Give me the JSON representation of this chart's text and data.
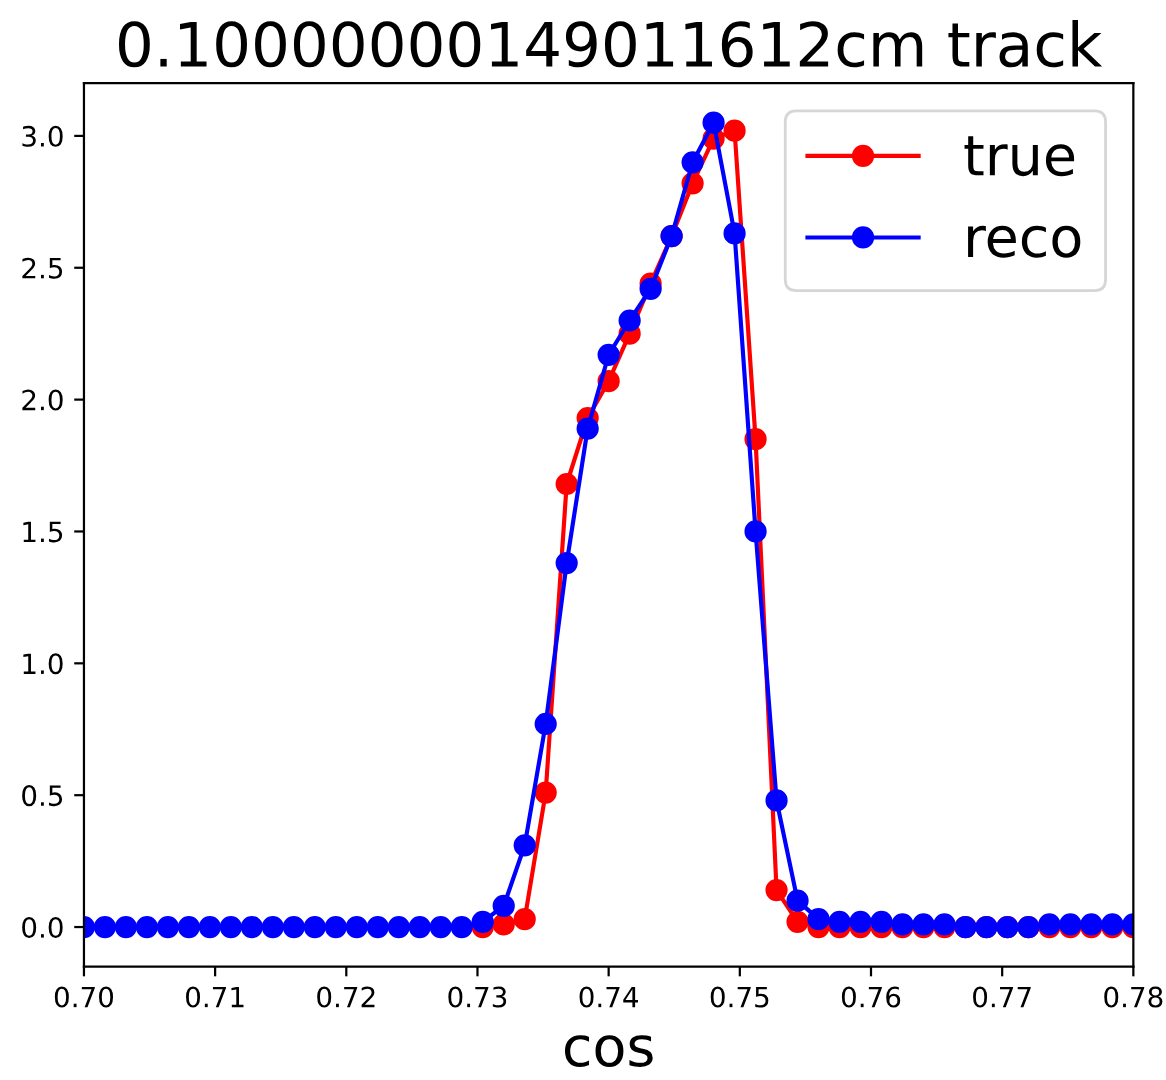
{
  "chart_data": {
    "type": "line",
    "title": "0.10000000149011612cm track",
    "xlabel": "cos",
    "x": [
      0.7,
      0.7016,
      0.7032,
      0.7048,
      0.7064,
      0.708,
      0.7096,
      0.7112,
      0.7128,
      0.7144,
      0.716,
      0.7176,
      0.7192,
      0.7208,
      0.7224,
      0.724,
      0.7256,
      0.7272,
      0.7288,
      0.7304,
      0.732,
      0.7336,
      0.7352,
      0.7368,
      0.7384,
      0.74,
      0.7416,
      0.7432,
      0.7448,
      0.7464,
      0.748,
      0.7496,
      0.7512,
      0.7528,
      0.7544,
      0.756,
      0.7576,
      0.7592,
      0.7608,
      0.7624,
      0.764,
      0.7656,
      0.7672,
      0.7688,
      0.7704,
      0.772,
      0.7736,
      0.7752,
      0.7768,
      0.7784,
      0.78
    ],
    "series": [
      {
        "name": "true",
        "color": "#ff0000",
        "values": [
          null,
          null,
          null,
          null,
          null,
          null,
          null,
          null,
          null,
          null,
          null,
          null,
          null,
          null,
          null,
          null,
          null,
          null,
          null,
          0,
          0.01,
          0.03,
          0.51,
          1.68,
          1.93,
          2.07,
          2.25,
          2.44,
          2.62,
          2.82,
          2.99,
          3.02,
          1.85,
          0.14,
          0.02,
          0,
          0,
          0,
          0,
          0,
          0,
          0,
          0,
          0,
          0,
          0,
          0,
          0,
          0,
          0,
          0
        ]
      },
      {
        "name": "reco",
        "color": "#0000ff",
        "values": [
          0,
          0,
          0,
          0,
          0,
          0,
          0,
          0,
          0,
          0,
          0,
          0,
          0,
          0,
          0,
          0,
          0,
          0,
          0,
          0.02,
          0.08,
          0.31,
          0.77,
          1.38,
          1.89,
          2.17,
          2.3,
          2.42,
          2.62,
          2.9,
          3.05,
          2.63,
          1.5,
          0.48,
          0.1,
          0.03,
          0.02,
          0.02,
          0.02,
          0.01,
          0.01,
          0.01,
          0,
          0,
          0,
          0,
          0.01,
          0.01,
          0.01,
          0.01,
          0.01
        ]
      }
    ],
    "marker": "circle",
    "line_style": "solid",
    "legend": "top right",
    "grid": false,
    "xlim": [
      0.7,
      0.78
    ],
    "xticks": [
      {
        "value": 0.7,
        "label": "0.70"
      },
      0.71,
      0.72,
      0.73,
      0.74,
      0.75,
      0.76,
      0.77,
      {
        "value": 0.78,
        "label": "0.78"
      }
    ],
    "ylim": [
      -0.15,
      3.2
    ],
    "yticks": [
      {
        "value": 0,
        "label": "0.0"
      },
      0.5,
      {
        "value": 1,
        "label": "1.0"
      },
      1.5,
      {
        "value": 2,
        "label": "2.0"
      },
      2.5,
      {
        "value": 3,
        "label": "3.0"
      }
    ]
  }
}
